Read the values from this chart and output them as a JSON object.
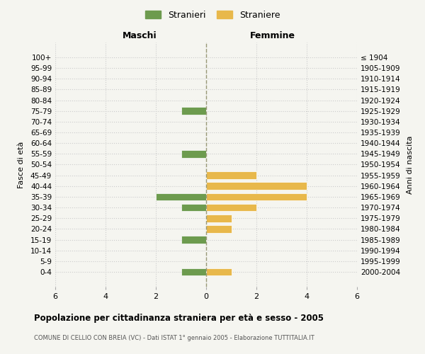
{
  "age_groups": [
    "100+",
    "95-99",
    "90-94",
    "85-89",
    "80-84",
    "75-79",
    "70-74",
    "65-69",
    "60-64",
    "55-59",
    "50-54",
    "45-49",
    "40-44",
    "35-39",
    "30-34",
    "25-29",
    "20-24",
    "15-19",
    "10-14",
    "5-9",
    "0-4"
  ],
  "birth_years": [
    "≤ 1904",
    "1905-1909",
    "1910-1914",
    "1915-1919",
    "1920-1924",
    "1925-1929",
    "1930-1934",
    "1935-1939",
    "1940-1944",
    "1945-1949",
    "1950-1954",
    "1955-1959",
    "1960-1964",
    "1965-1969",
    "1970-1974",
    "1975-1979",
    "1980-1984",
    "1985-1989",
    "1990-1994",
    "1995-1999",
    "2000-2004"
  ],
  "maschi": [
    0,
    0,
    0,
    0,
    0,
    1,
    0,
    0,
    0,
    1,
    0,
    0,
    0,
    2,
    1,
    0,
    0,
    1,
    0,
    0,
    1
  ],
  "femmine": [
    0,
    0,
    0,
    0,
    0,
    0,
    0,
    0,
    0,
    0,
    0,
    2,
    4,
    4,
    2,
    1,
    1,
    0,
    0,
    0,
    1
  ],
  "color_maschi": "#6d9b4e",
  "color_femmine": "#e8b84b",
  "title": "Popolazione per cittadinanza straniera per età e sesso - 2005",
  "subtitle": "COMUNE DI CELLIO CON BREIA (VC) - Dati ISTAT 1° gennaio 2005 - Elaborazione TUTTITALIA.IT",
  "xlabel_left": "Maschi",
  "xlabel_right": "Femmine",
  "ylabel_left": "Fasce di età",
  "ylabel_right": "Anni di nascita",
  "legend_maschi": "Stranieri",
  "legend_femmine": "Straniere",
  "xlim": 6,
  "bg_color": "#f5f5f0",
  "grid_color": "#cccccc",
  "bar_color_edge": "white"
}
